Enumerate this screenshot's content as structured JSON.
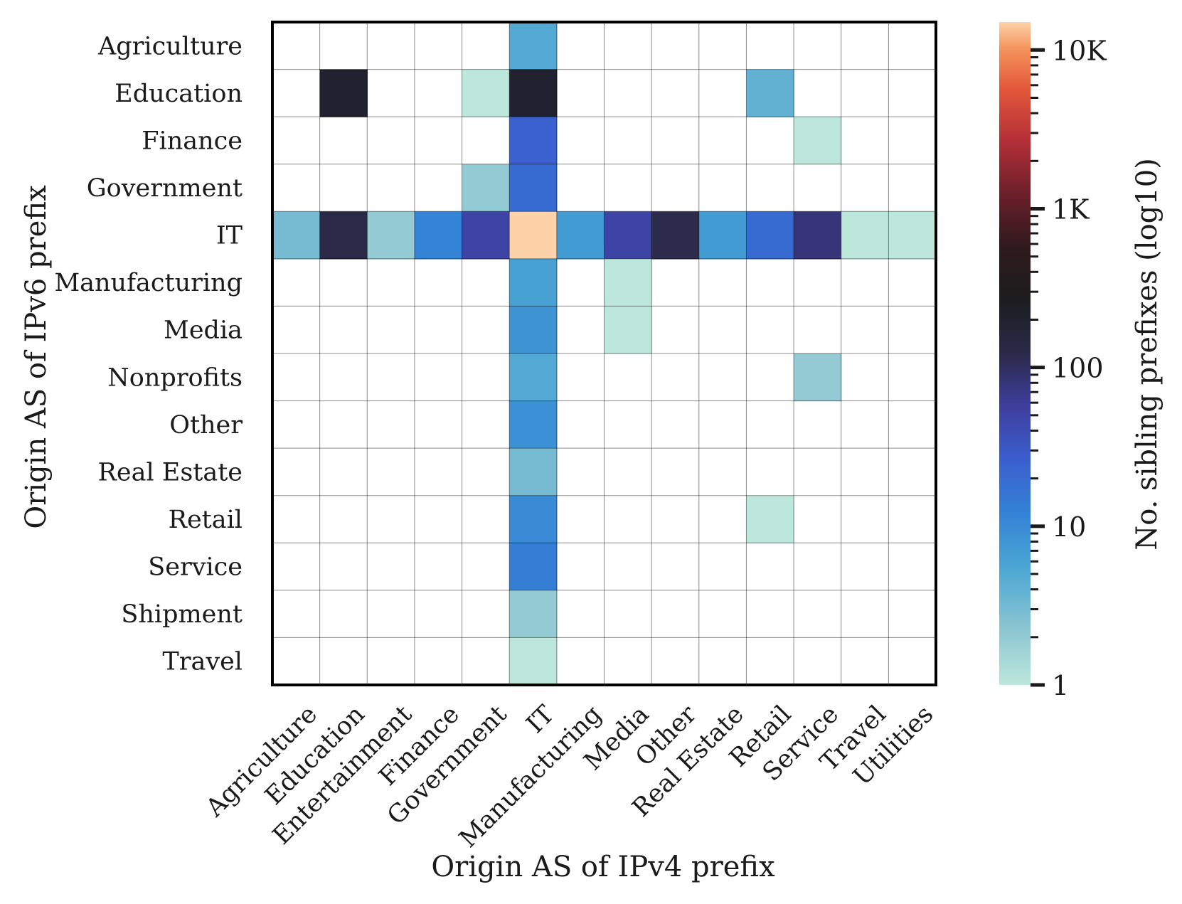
{
  "chart_data": {
    "type": "heatmap",
    "xlabel": "Origin AS of IPv4 prefix",
    "ylabel": "Origin AS of IPv6 prefix",
    "x_categories": [
      "Agriculture",
      "Education",
      "Entertainment",
      "Finance",
      "Government",
      "IT",
      "Manufacturing",
      "Media",
      "Other",
      "Real Estate",
      "Retail",
      "Service",
      "Travel",
      "Utilities"
    ],
    "y_categories": [
      "Agriculture",
      "Education",
      "Finance",
      "Government",
      "IT",
      "Manufacturing",
      "Media",
      "Nonprofits",
      "Other",
      "Real Estate",
      "Retail",
      "Service",
      "Shipment",
      "Travel"
    ],
    "values": [
      [
        0,
        0,
        0,
        0,
        0,
        5,
        0,
        0,
        0,
        0,
        0,
        0,
        0,
        0
      ],
      [
        0,
        200,
        0,
        0,
        1,
        200,
        0,
        0,
        0,
        0,
        4,
        0,
        0,
        0
      ],
      [
        0,
        0,
        0,
        0,
        0,
        25,
        0,
        0,
        0,
        0,
        0,
        1,
        0,
        0
      ],
      [
        0,
        0,
        0,
        0,
        2,
        20,
        0,
        0,
        0,
        0,
        0,
        0,
        0,
        0
      ],
      [
        3,
        130,
        2,
        12,
        50,
        15000,
        7,
        50,
        120,
        7,
        20,
        80,
        1,
        1
      ],
      [
        0,
        0,
        0,
        0,
        0,
        6,
        0,
        1,
        0,
        0,
        0,
        0,
        0,
        0
      ],
      [
        0,
        0,
        0,
        0,
        0,
        8,
        0,
        1,
        0,
        0,
        0,
        0,
        0,
        0
      ],
      [
        0,
        0,
        0,
        0,
        0,
        5,
        0,
        0,
        0,
        0,
        0,
        2,
        0,
        0
      ],
      [
        0,
        0,
        0,
        0,
        0,
        9,
        0,
        0,
        0,
        0,
        0,
        0,
        0,
        0
      ],
      [
        0,
        0,
        0,
        0,
        0,
        3,
        0,
        0,
        0,
        0,
        0,
        0,
        0,
        0
      ],
      [
        0,
        0,
        0,
        0,
        0,
        10,
        0,
        0,
        0,
        0,
        1,
        0,
        0,
        0
      ],
      [
        0,
        0,
        0,
        0,
        0,
        13,
        0,
        0,
        0,
        0,
        0,
        0,
        0,
        0
      ],
      [
        0,
        0,
        0,
        0,
        0,
        2,
        0,
        0,
        0,
        0,
        0,
        0,
        0,
        0
      ],
      [
        0,
        0,
        0,
        0,
        0,
        1,
        0,
        0,
        0,
        0,
        0,
        0,
        0,
        0
      ]
    ],
    "colorbar": {
      "label": "No. sibling prefixes (log10)",
      "scale": "log",
      "range": [
        1,
        15000
      ],
      "ticks": [
        {
          "value": 1,
          "label": "1"
        },
        {
          "value": 10,
          "label": "10"
        },
        {
          "value": 100,
          "label": "100"
        },
        {
          "value": 1000,
          "label": "1K"
        },
        {
          "value": 10000,
          "label": "10K"
        }
      ],
      "colormap": "icefire",
      "stops": [
        {
          "t": 0.0,
          "color": "#bde7db"
        },
        {
          "t": 0.08,
          "color": "#8ec7d2"
        },
        {
          "t": 0.18,
          "color": "#49a5d3"
        },
        {
          "t": 0.26,
          "color": "#3382d6"
        },
        {
          "t": 0.34,
          "color": "#3b5fce"
        },
        {
          "t": 0.42,
          "color": "#3e3e9e"
        },
        {
          "t": 0.5,
          "color": "#2b2a4a"
        },
        {
          "t": 0.58,
          "color": "#1c1c1f"
        },
        {
          "t": 0.66,
          "color": "#2e1a1c"
        },
        {
          "t": 0.74,
          "color": "#6b1f2b"
        },
        {
          "t": 0.82,
          "color": "#b32f38"
        },
        {
          "t": 0.9,
          "color": "#e3583a"
        },
        {
          "t": 0.96,
          "color": "#f4945c"
        },
        {
          "t": 1.0,
          "color": "#fdd2a9"
        }
      ]
    }
  }
}
